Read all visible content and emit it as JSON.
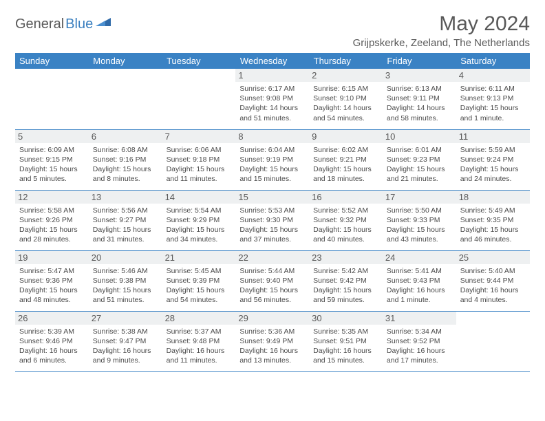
{
  "logo": {
    "text1": "General",
    "text2": "Blue"
  },
  "title": "May 2024",
  "location": "Grijpskerke, Zeeland, The Netherlands",
  "colors": {
    "header_bg": "#3a82c4",
    "header_text": "#ffffff",
    "body_text": "#4a4a4a",
    "title_text": "#595959",
    "daynum_bg": "#eef0f1",
    "row_border": "#3a82c4"
  },
  "weekdays": [
    "Sunday",
    "Monday",
    "Tuesday",
    "Wednesday",
    "Thursday",
    "Friday",
    "Saturday"
  ],
  "weeks": [
    [
      {
        "day": "",
        "sunrise": "",
        "sunset": "",
        "daylight": ""
      },
      {
        "day": "",
        "sunrise": "",
        "sunset": "",
        "daylight": ""
      },
      {
        "day": "",
        "sunrise": "",
        "sunset": "",
        "daylight": ""
      },
      {
        "day": "1",
        "sunrise": "Sunrise: 6:17 AM",
        "sunset": "Sunset: 9:08 PM",
        "daylight": "Daylight: 14 hours and 51 minutes."
      },
      {
        "day": "2",
        "sunrise": "Sunrise: 6:15 AM",
        "sunset": "Sunset: 9:10 PM",
        "daylight": "Daylight: 14 hours and 54 minutes."
      },
      {
        "day": "3",
        "sunrise": "Sunrise: 6:13 AM",
        "sunset": "Sunset: 9:11 PM",
        "daylight": "Daylight: 14 hours and 58 minutes."
      },
      {
        "day": "4",
        "sunrise": "Sunrise: 6:11 AM",
        "sunset": "Sunset: 9:13 PM",
        "daylight": "Daylight: 15 hours and 1 minute."
      }
    ],
    [
      {
        "day": "5",
        "sunrise": "Sunrise: 6:09 AM",
        "sunset": "Sunset: 9:15 PM",
        "daylight": "Daylight: 15 hours and 5 minutes."
      },
      {
        "day": "6",
        "sunrise": "Sunrise: 6:08 AM",
        "sunset": "Sunset: 9:16 PM",
        "daylight": "Daylight: 15 hours and 8 minutes."
      },
      {
        "day": "7",
        "sunrise": "Sunrise: 6:06 AM",
        "sunset": "Sunset: 9:18 PM",
        "daylight": "Daylight: 15 hours and 11 minutes."
      },
      {
        "day": "8",
        "sunrise": "Sunrise: 6:04 AM",
        "sunset": "Sunset: 9:19 PM",
        "daylight": "Daylight: 15 hours and 15 minutes."
      },
      {
        "day": "9",
        "sunrise": "Sunrise: 6:02 AM",
        "sunset": "Sunset: 9:21 PM",
        "daylight": "Daylight: 15 hours and 18 minutes."
      },
      {
        "day": "10",
        "sunrise": "Sunrise: 6:01 AM",
        "sunset": "Sunset: 9:23 PM",
        "daylight": "Daylight: 15 hours and 21 minutes."
      },
      {
        "day": "11",
        "sunrise": "Sunrise: 5:59 AM",
        "sunset": "Sunset: 9:24 PM",
        "daylight": "Daylight: 15 hours and 24 minutes."
      }
    ],
    [
      {
        "day": "12",
        "sunrise": "Sunrise: 5:58 AM",
        "sunset": "Sunset: 9:26 PM",
        "daylight": "Daylight: 15 hours and 28 minutes."
      },
      {
        "day": "13",
        "sunrise": "Sunrise: 5:56 AM",
        "sunset": "Sunset: 9:27 PM",
        "daylight": "Daylight: 15 hours and 31 minutes."
      },
      {
        "day": "14",
        "sunrise": "Sunrise: 5:54 AM",
        "sunset": "Sunset: 9:29 PM",
        "daylight": "Daylight: 15 hours and 34 minutes."
      },
      {
        "day": "15",
        "sunrise": "Sunrise: 5:53 AM",
        "sunset": "Sunset: 9:30 PM",
        "daylight": "Daylight: 15 hours and 37 minutes."
      },
      {
        "day": "16",
        "sunrise": "Sunrise: 5:52 AM",
        "sunset": "Sunset: 9:32 PM",
        "daylight": "Daylight: 15 hours and 40 minutes."
      },
      {
        "day": "17",
        "sunrise": "Sunrise: 5:50 AM",
        "sunset": "Sunset: 9:33 PM",
        "daylight": "Daylight: 15 hours and 43 minutes."
      },
      {
        "day": "18",
        "sunrise": "Sunrise: 5:49 AM",
        "sunset": "Sunset: 9:35 PM",
        "daylight": "Daylight: 15 hours and 46 minutes."
      }
    ],
    [
      {
        "day": "19",
        "sunrise": "Sunrise: 5:47 AM",
        "sunset": "Sunset: 9:36 PM",
        "daylight": "Daylight: 15 hours and 48 minutes."
      },
      {
        "day": "20",
        "sunrise": "Sunrise: 5:46 AM",
        "sunset": "Sunset: 9:38 PM",
        "daylight": "Daylight: 15 hours and 51 minutes."
      },
      {
        "day": "21",
        "sunrise": "Sunrise: 5:45 AM",
        "sunset": "Sunset: 9:39 PM",
        "daylight": "Daylight: 15 hours and 54 minutes."
      },
      {
        "day": "22",
        "sunrise": "Sunrise: 5:44 AM",
        "sunset": "Sunset: 9:40 PM",
        "daylight": "Daylight: 15 hours and 56 minutes."
      },
      {
        "day": "23",
        "sunrise": "Sunrise: 5:42 AM",
        "sunset": "Sunset: 9:42 PM",
        "daylight": "Daylight: 15 hours and 59 minutes."
      },
      {
        "day": "24",
        "sunrise": "Sunrise: 5:41 AM",
        "sunset": "Sunset: 9:43 PM",
        "daylight": "Daylight: 16 hours and 1 minute."
      },
      {
        "day": "25",
        "sunrise": "Sunrise: 5:40 AM",
        "sunset": "Sunset: 9:44 PM",
        "daylight": "Daylight: 16 hours and 4 minutes."
      }
    ],
    [
      {
        "day": "26",
        "sunrise": "Sunrise: 5:39 AM",
        "sunset": "Sunset: 9:46 PM",
        "daylight": "Daylight: 16 hours and 6 minutes."
      },
      {
        "day": "27",
        "sunrise": "Sunrise: 5:38 AM",
        "sunset": "Sunset: 9:47 PM",
        "daylight": "Daylight: 16 hours and 9 minutes."
      },
      {
        "day": "28",
        "sunrise": "Sunrise: 5:37 AM",
        "sunset": "Sunset: 9:48 PM",
        "daylight": "Daylight: 16 hours and 11 minutes."
      },
      {
        "day": "29",
        "sunrise": "Sunrise: 5:36 AM",
        "sunset": "Sunset: 9:49 PM",
        "daylight": "Daylight: 16 hours and 13 minutes."
      },
      {
        "day": "30",
        "sunrise": "Sunrise: 5:35 AM",
        "sunset": "Sunset: 9:51 PM",
        "daylight": "Daylight: 16 hours and 15 minutes."
      },
      {
        "day": "31",
        "sunrise": "Sunrise: 5:34 AM",
        "sunset": "Sunset: 9:52 PM",
        "daylight": "Daylight: 16 hours and 17 minutes."
      },
      {
        "day": "",
        "sunrise": "",
        "sunset": "",
        "daylight": ""
      }
    ]
  ]
}
